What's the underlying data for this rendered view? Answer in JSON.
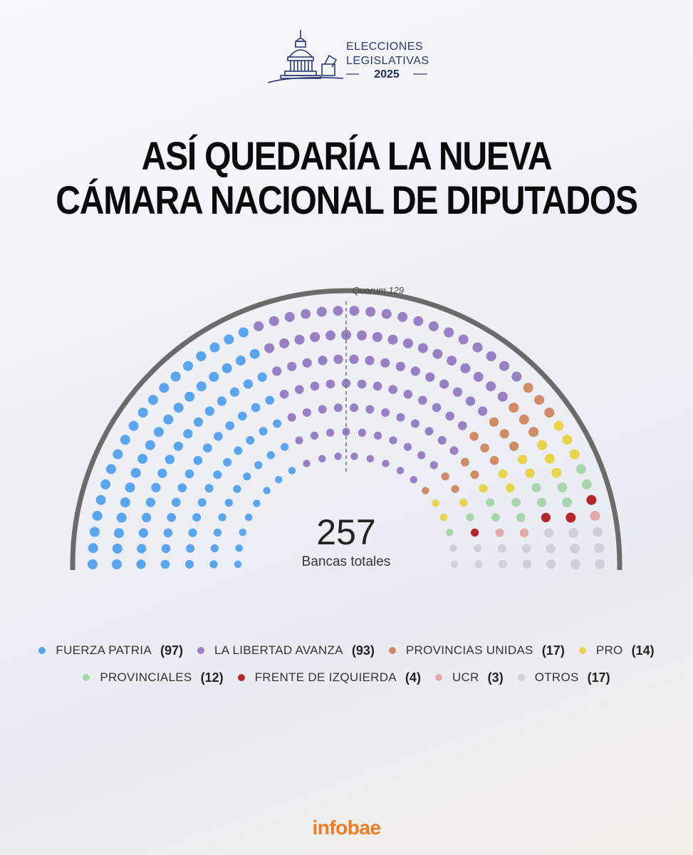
{
  "header": {
    "logo_line1": "ELECCIONES",
    "logo_line2": "LEGISLATIVAS",
    "logo_year": "2025",
    "title_line1": "ASÍ QUEDARÍA LA NUEVA",
    "title_line2": "CÁMARA NACIONAL DE DIPUTADOS"
  },
  "chart_data": {
    "type": "parliament",
    "total_seats": "257",
    "total_label": "Bancas totales",
    "quorum_label": "Quorum 129",
    "quorum": 129,
    "parties": [
      {
        "name": "FUERZA PATRIA",
        "seats": "97",
        "color": "#5ba4ee"
      },
      {
        "name": "LA LIBERTAD AVANZA",
        "seats": "93",
        "color": "#9880c4"
      },
      {
        "name": "PROVINCIAS UNIDAS",
        "seats": "17",
        "color": "#cf8c66"
      },
      {
        "name": "PRO",
        "seats": "14",
        "color": "#e9d34a"
      },
      {
        "name": "PROVINCIALES",
        "seats": "12",
        "color": "#a9d5ac"
      },
      {
        "name": "FRENTE DE IZQUIERDA",
        "seats": "4",
        "color": "#b5262a"
      },
      {
        "name": "UCR",
        "seats": "3",
        "color": "#e3a9ad"
      },
      {
        "name": "OTROS",
        "seats": "17",
        "color": "#cdd0d6"
      }
    ]
  },
  "brand": {
    "name": "infobae"
  },
  "colors": {
    "arc": "#6b6b6b",
    "logo": "#2b3970",
    "brand": "#f07b21"
  }
}
